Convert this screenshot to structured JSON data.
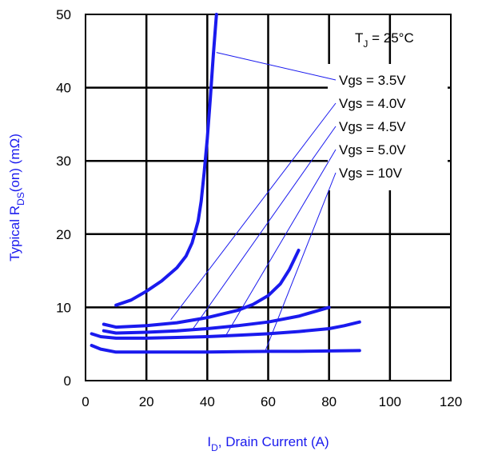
{
  "chart_data": {
    "type": "line",
    "xlabel_prefix": "I",
    "xlabel_sub": "D",
    "xlabel_suffix": ", Drain Current (A)",
    "ylabel_prefix": "Typical R",
    "ylabel_sub": "DS",
    "ylabel_suffix": "(on) (mΩ)",
    "xlim": [
      0,
      120
    ],
    "ylim": [
      0,
      50
    ],
    "xticks": [
      0,
      20,
      40,
      60,
      80,
      100,
      120
    ],
    "yticks": [
      0,
      10,
      20,
      30,
      40,
      50
    ],
    "grid": true,
    "temperature_label_prefix": "T",
    "temperature_label_sub": "J",
    "temperature_label_suffix": " = 25°C",
    "series": [
      {
        "name": "Vgs = 3.5V",
        "x": [
          10,
          15,
          20,
          25,
          30,
          33,
          35,
          37,
          38,
          39,
          40,
          41,
          42,
          43
        ],
        "y": [
          10.3,
          11.0,
          12.2,
          13.6,
          15.4,
          17.0,
          18.8,
          21.8,
          24.5,
          28.5,
          33.0,
          38.5,
          44.5,
          50.0
        ]
      },
      {
        "name": "Vgs = 4.0V",
        "x": [
          6,
          10,
          20,
          30,
          40,
          50,
          55,
          60,
          64,
          67,
          70
        ],
        "y": [
          7.7,
          7.3,
          7.5,
          7.9,
          8.6,
          9.6,
          10.4,
          11.6,
          13.2,
          15.2,
          17.8
        ]
      },
      {
        "name": "Vgs = 4.5V",
        "x": [
          6,
          10,
          20,
          30,
          40,
          50,
          60,
          70,
          75,
          80
        ],
        "y": [
          6.8,
          6.5,
          6.6,
          6.8,
          7.1,
          7.5,
          8.0,
          8.8,
          9.4,
          10.0
        ]
      },
      {
        "name": "Vgs = 5.0V",
        "x": [
          2,
          5,
          10,
          20,
          30,
          40,
          50,
          60,
          70,
          80,
          85,
          90
        ],
        "y": [
          6.4,
          6.0,
          5.8,
          5.8,
          5.9,
          6.0,
          6.2,
          6.4,
          6.7,
          7.1,
          7.5,
          8.0
        ]
      },
      {
        "name": "Vgs = 10V",
        "x": [
          2,
          5,
          10,
          20,
          30,
          40,
          50,
          60,
          70,
          80,
          90
        ],
        "y": [
          4.8,
          4.3,
          3.9,
          3.9,
          3.9,
          3.9,
          3.95,
          4.0,
          4.0,
          4.05,
          4.1
        ]
      }
    ],
    "legend_callouts": [
      {
        "label": "Vgs = 3.5V",
        "point": [
          43,
          44.8
        ]
      },
      {
        "label": "Vgs = 4.0V",
        "point": [
          28,
          8.3
        ]
      },
      {
        "label": "Vgs = 4.5V",
        "point": [
          35,
          6.9
        ]
      },
      {
        "label": "Vgs = 5.0V",
        "point": [
          46,
          6.1
        ]
      },
      {
        "label": "Vgs = 10V",
        "point": [
          59,
          4.0
        ]
      }
    ],
    "colors": {
      "curve": "#1a1aee",
      "grid": "#000000",
      "axis_label": "#1a1aee",
      "callout": "#1a1aee"
    }
  }
}
